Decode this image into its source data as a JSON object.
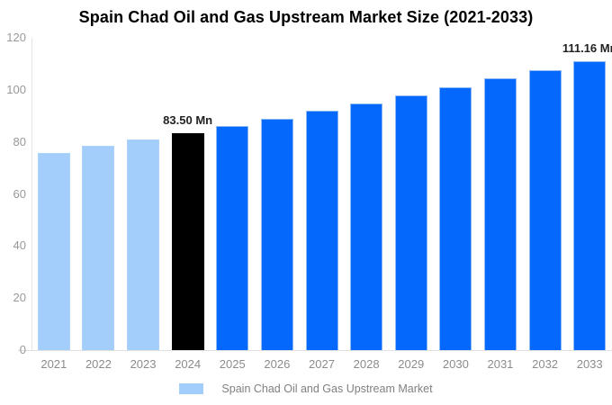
{
  "title": "Spain Chad Oil and Gas Upstream Market Size (2021-2033)",
  "colors": {
    "light_blue_bar": "#A3CDFA",
    "bright_blue_bar": "#0568FD",
    "highlight_bar": "#000000",
    "axis_line": "#E3E3E3",
    "tick_text": "#999999",
    "data_label_text": "#222222",
    "legend_text": "#808080",
    "title_text": "#000000"
  },
  "chart_data": {
    "type": "bar",
    "title": "Spain Chad Oil and Gas Upstream Market Size (2021-2033)",
    "xlabel": "",
    "ylabel": "",
    "ylim": [
      0,
      120
    ],
    "yticks": [
      0,
      20,
      40,
      60,
      80,
      100,
      120
    ],
    "grid": "off",
    "categories": [
      "2021",
      "2022",
      "2023",
      "2024",
      "2025",
      "2026",
      "2027",
      "2028",
      "2029",
      "2030",
      "2031",
      "2032",
      "2033"
    ],
    "values": [
      75.9,
      78.35,
      80.89,
      83.5,
      86.2,
      88.98,
      91.86,
      94.83,
      97.89,
      101.05,
      104.32,
      107.69,
      111.16
    ],
    "bar_styles": [
      "light",
      "light",
      "light",
      "black",
      "blue",
      "blue",
      "blue",
      "blue",
      "blue",
      "blue",
      "blue",
      "blue",
      "blue"
    ],
    "annotations": [
      {
        "category": "2024",
        "text": "83.50 Mn"
      },
      {
        "category": "2033",
        "text": "111.16 Mn"
      }
    ],
    "legend": {
      "position": "bottom",
      "label": "Spain Chad Oil and Gas Upstream Market"
    },
    "unit": "Mn"
  }
}
